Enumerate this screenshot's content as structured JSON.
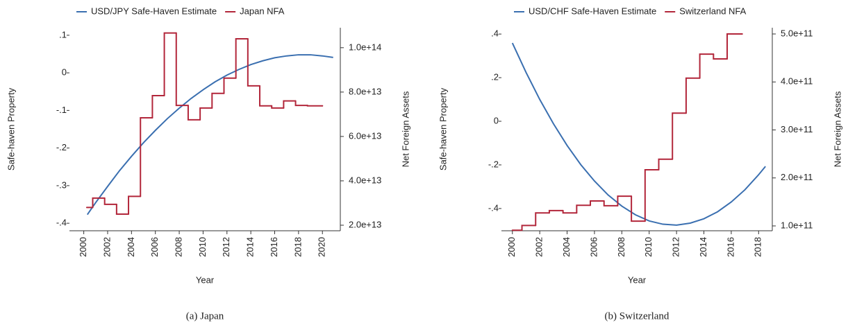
{
  "chart_data": [
    {
      "type": "line",
      "caption": "(a) Japan",
      "xlabel": "Year",
      "ylabel": "Safe-haven Property",
      "y2label": "Net Foreign Assets",
      "legend": "top",
      "xlim": [
        1998.8,
        2021.5
      ],
      "xticks": [
        2000,
        2002,
        2004,
        2006,
        2008,
        2010,
        2012,
        2014,
        2016,
        2018,
        2020
      ],
      "ylim": [
        -0.42,
        0.12
      ],
      "yticks": [
        {
          "value": 0.1,
          "label": ".1"
        },
        0,
        {
          "value": -0.1,
          "label": "-.1"
        },
        {
          "value": -0.2,
          "label": "-.2"
        },
        {
          "value": -0.3,
          "label": "-.3"
        },
        {
          "value": -0.4,
          "label": "-.4"
        }
      ],
      "y2lim": [
        17500000000000.0,
        109000000000000.0
      ],
      "y2ticks": [
        {
          "value": 20000000000000.0,
          "label": "2.0e+13"
        },
        {
          "value": 40000000000000.0,
          "label": "4.0e+13"
        },
        {
          "value": 60000000000000.0,
          "label": "6.0e+13"
        },
        {
          "value": 80000000000000.0,
          "label": "8.0e+13"
        },
        {
          "value": 100000000000000.0,
          "label": "1.0e+14"
        }
      ],
      "series": [
        {
          "name": "USD/JPY Safe-Haven Estimate",
          "color": "#3a6fb0",
          "x": [
            2000.3,
            2001,
            2002,
            2003,
            2004,
            2005,
            2006,
            2007,
            2008,
            2009,
            2010,
            2011,
            2012,
            2013,
            2014,
            2015,
            2016,
            2017,
            2018,
            2019,
            2020,
            2020.9
          ],
          "values": [
            -0.377,
            -0.345,
            -0.302,
            -0.26,
            -0.222,
            -0.186,
            -0.153,
            -0.122,
            -0.094,
            -0.068,
            -0.045,
            -0.024,
            -0.006,
            0.009,
            0.022,
            0.032,
            0.04,
            0.045,
            0.048,
            0.048,
            0.045,
            0.041
          ]
        },
        {
          "name": "Japan NFA",
          "color": "#b2263a",
          "axis": "y2",
          "step": "post",
          "x": [
            2000.25,
            2000.75,
            2001.75,
            2002.75,
            2003.75,
            2004.75,
            2005.75,
            2006.75,
            2007.75,
            2008.75,
            2009.75,
            2010.75,
            2011.75,
            2012.75,
            2013.75,
            2014.75,
            2015.75,
            2016.75,
            2017.75,
            2018.75,
            2020
          ],
          "values": [
            28000000000000.0,
            32200000000000.0,
            29400000000000.0,
            25000000000000.0,
            33000000000000.0,
            68400000000000.0,
            78400000000000.0,
            106600000000000.0,
            74000000000000.0,
            67500000000000.0,
            72800000000000.0,
            79400000000000.0,
            86300000000000.0,
            104000000000000.0,
            82800000000000.0,
            73800000000000.0,
            72800000000000.0,
            76000000000000.0,
            74000000000000.0,
            73800000000000.0,
            73800000000000.0
          ]
        }
      ]
    },
    {
      "type": "line",
      "caption": "(b) Switzerland",
      "xlabel": "Year",
      "ylabel": "Safe-haven Property",
      "y2label": "Net Foreign Assets",
      "legend": "top",
      "xlim": [
        1999.2,
        2019.0
      ],
      "xticks": [
        2000,
        2002,
        2004,
        2006,
        2008,
        2010,
        2012,
        2014,
        2016,
        2018
      ],
      "ylim": [
        -0.502,
        0.429
      ],
      "yticks": [
        {
          "value": 0.4,
          "label": ".4"
        },
        {
          "value": 0.2,
          "label": ".2"
        },
        0,
        {
          "value": -0.2,
          "label": "-.2"
        },
        {
          "value": -0.4,
          "label": "-.4"
        }
      ],
      "y2lim": [
        89900000000.0,
        513000000000.0
      ],
      "y2ticks": [
        {
          "value": 100000000000.0,
          "label": "1.0e+11"
        },
        {
          "value": 200000000000.0,
          "label": "2.0e+11"
        },
        {
          "value": 300000000000.0,
          "label": "3.0e+11"
        },
        {
          "value": 400000000000.0,
          "label": "4.0e+11"
        },
        {
          "value": 500000000000.0,
          "label": "5.0e+11"
        }
      ],
      "series": [
        {
          "name": "USD/CHF Safe-Haven Estimate",
          "color": "#3a6fb0",
          "x": [
            2000,
            2001,
            2002,
            2003,
            2004,
            2005,
            2006,
            2007,
            2008,
            2009,
            2010,
            2011,
            2012,
            2013,
            2014,
            2015,
            2016,
            2017,
            2018,
            2018.5
          ],
          "values": [
            0.359,
            0.224,
            0.1,
            -0.011,
            -0.111,
            -0.199,
            -0.274,
            -0.338,
            -0.389,
            -0.429,
            -0.457,
            -0.472,
            -0.476,
            -0.467,
            -0.447,
            -0.415,
            -0.37,
            -0.314,
            -0.245,
            -0.207
          ]
        },
        {
          "name": "Switzerland NFA",
          "color": "#b2263a",
          "axis": "y2",
          "step": "post",
          "x": [
            2000,
            2000.7,
            2001.7,
            2002.7,
            2003.7,
            2004.7,
            2005.7,
            2006.7,
            2007.7,
            2008.7,
            2009.7,
            2010.7,
            2011.7,
            2012.7,
            2013.7,
            2014.7,
            2015.7,
            2016.8
          ],
          "values": [
            91000000000.0,
            101000000000.0,
            127000000000.0,
            132000000000.0,
            127000000000.0,
            143000000000.0,
            152000000000.0,
            142000000000.0,
            162000000000.0,
            110000000000.0,
            217000000000.0,
            239000000000.0,
            335000000000.0,
            408000000000.0,
            458000000000.0,
            448000000000.0,
            500000000000.0,
            500000000000.0
          ]
        }
      ]
    }
  ]
}
